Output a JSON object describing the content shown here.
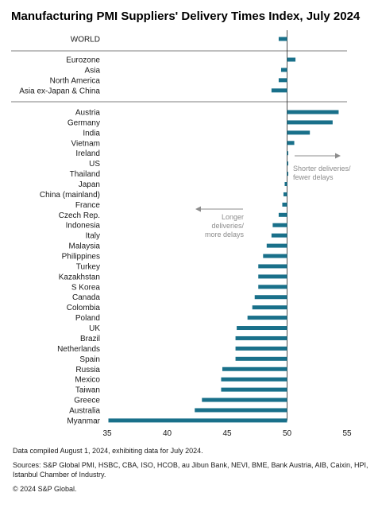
{
  "chart_data": {
    "type": "bar",
    "orientation": "horizontal",
    "title": "Manufacturing PMI Suppliers' Delivery Times Index, July 2024",
    "xlim": [
      35,
      55
    ],
    "xticks": [
      35,
      40,
      45,
      50,
      55
    ],
    "baseline": 50,
    "bar_color": "#19708a",
    "groups": [
      {
        "name": "world",
        "categories": [
          "WORLD"
        ],
        "values": [
          49.3
        ]
      },
      {
        "name": "regions",
        "categories": [
          "Eurozone",
          "Asia",
          "North America",
          "Asia ex-Japan & China"
        ],
        "values": [
          50.7,
          49.5,
          49.3,
          48.7
        ]
      },
      {
        "name": "countries",
        "categories": [
          "Austria",
          "Germany",
          "India",
          "Vietnam",
          "Ireland",
          "US",
          "Thailand",
          "Japan",
          "China (mainland)",
          "France",
          "Czech Rep.",
          "Indonesia",
          "Italy",
          "Malaysia",
          "Philippines",
          "Turkey",
          "Kazakhstan",
          "S Korea",
          "Canada",
          "Colombia",
          "Poland",
          "UK",
          "Brazil",
          "Netherlands",
          "Spain",
          "Russia",
          "Mexico",
          "Taiwan",
          "Greece",
          "Australia",
          "Myanmar"
        ],
        "values": [
          54.3,
          53.8,
          51.9,
          50.6,
          50.1,
          50.1,
          50.1,
          49.8,
          49.7,
          49.6,
          49.3,
          48.8,
          48.7,
          48.3,
          48.0,
          47.6,
          47.6,
          47.6,
          47.3,
          47.1,
          46.7,
          45.8,
          45.7,
          45.7,
          45.7,
          44.6,
          44.5,
          44.5,
          42.9,
          42.3,
          35.1
        ]
      }
    ],
    "annotations": [
      {
        "text_lines": [
          "Shorter deliveries/",
          "fewer delays"
        ],
        "direction": "right",
        "color": "#8c8c8c"
      },
      {
        "text_lines": [
          "Longer",
          "deliveries/",
          "more delays"
        ],
        "direction": "left",
        "color": "#8c8c8c"
      }
    ]
  },
  "footer": {
    "note": "Data compiled August 1, 2024, exhibiting data for July 2024.",
    "sources_line1": "Sources: S&P Global PMI, HSBC, CBA, ISO, HCOB, au Jibun Bank, NEVI, BME, Bank Austria, AIB, Caixin, HPI,",
    "sources_line2": "Istanbul Chamber of Industry.",
    "copyright": "© 2024 S&P Global."
  }
}
